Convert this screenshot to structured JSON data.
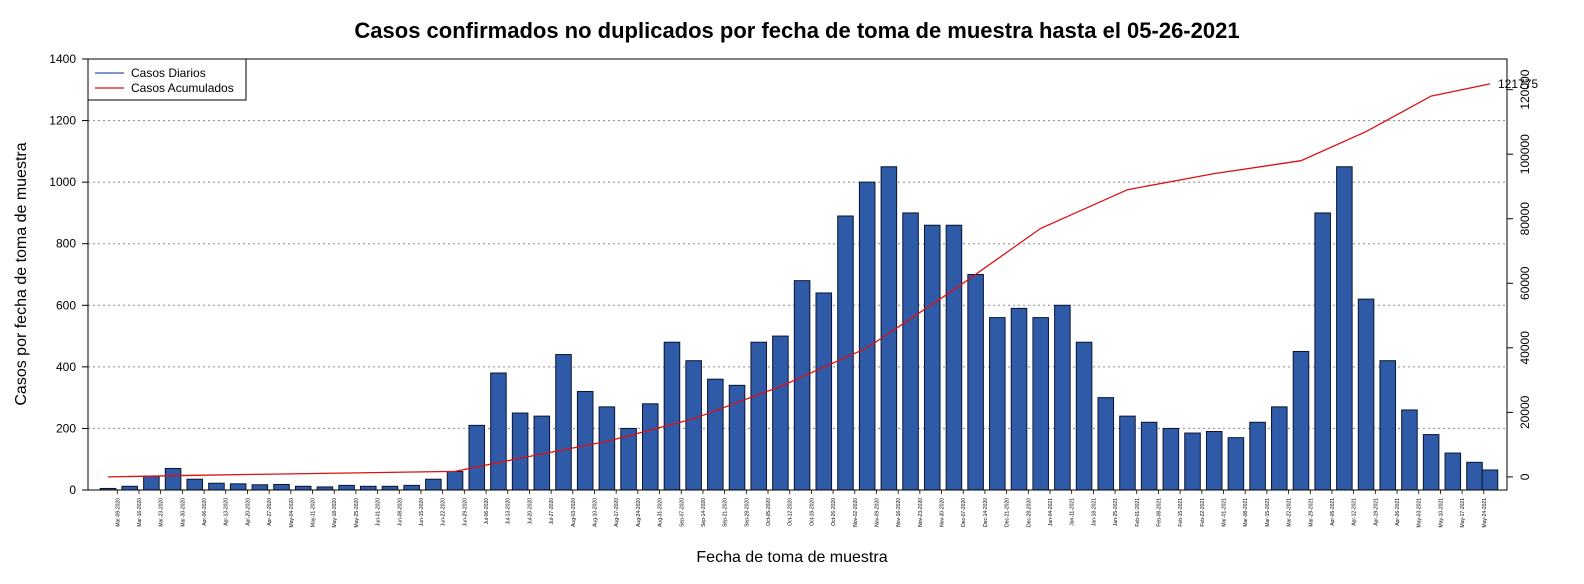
{
  "chart_data": {
    "type": "bar",
    "title": "Casos confirmados no duplicados por fecha de toma de muestra hasta el 05-26-2021",
    "xlabel": "Fecha de toma de muestra",
    "ylabel": "Casos por fecha de toma de muestra",
    "ylim": [
      0,
      1400
    ],
    "y_ticks": [
      0,
      200,
      400,
      600,
      800,
      1000,
      1200,
      1400
    ],
    "y2lim": [
      -4060,
      129500
    ],
    "y2_ticks": [
      0,
      20000,
      40000,
      60000,
      80000,
      100000,
      120000
    ],
    "grid": true,
    "legend_position": "top-left",
    "end_label": "121775",
    "weekly_x_ticks": [
      "Mar-09-2020",
      "Mar-16-2020",
      "Mar-23-2020",
      "Mar-30-2020",
      "Apr-06-2020",
      "Apr-13-2020",
      "Apr-20-2020",
      "Apr-27-2020",
      "May-04-2020",
      "May-11-2020",
      "May-18-2020",
      "May-25-2020",
      "Jun-01-2020",
      "Jun-08-2020",
      "Jun-15-2020",
      "Jun-22-2020",
      "Jun-29-2020",
      "Jul-06-2020",
      "Jul-13-2020",
      "Jul-20-2020",
      "Jul-27-2020",
      "Aug-03-2020",
      "Aug-10-2020",
      "Aug-17-2020",
      "Aug-24-2020",
      "Aug-31-2020",
      "Sep-07-2020",
      "Sep-14-2020",
      "Sep-21-2020",
      "Sep-28-2020",
      "Oct-05-2020",
      "Oct-12-2020",
      "Oct-19-2020",
      "Oct-26-2020",
      "Nov-02-2020",
      "Nov-09-2020",
      "Nov-16-2020",
      "Nov-23-2020",
      "Nov-30-2020",
      "Dec-07-2020",
      "Dec-14-2020",
      "Dec-21-2020",
      "Dec-28-2020",
      "Jan-04-2021",
      "Jan-11-2021",
      "Jan-18-2021",
      "Jan-25-2021",
      "Feb-01-2021",
      "Feb-08-2021",
      "Feb-15-2021",
      "Feb-22-2021",
      "Mar-01-2021",
      "Mar-08-2021",
      "Mar-15-2021",
      "Mar-22-2021",
      "Mar-29-2021",
      "Apr-05-2021",
      "Apr-12-2021",
      "Apr-19-2021",
      "Apr-26-2021",
      "May-03-2021",
      "May-10-2021",
      "May-17-2021",
      "May-24-2021"
    ],
    "series": [
      {
        "name": "Casos Diarios",
        "color": "#2e5aa8",
        "type": "bar",
        "x": [
          "2020-03-06",
          "2020-03-13",
          "2020-03-20",
          "2020-03-27",
          "2020-04-03",
          "2020-04-10",
          "2020-04-17",
          "2020-04-24",
          "2020-05-01",
          "2020-05-08",
          "2020-05-15",
          "2020-05-22",
          "2020-05-29",
          "2020-06-05",
          "2020-06-12",
          "2020-06-19",
          "2020-06-26",
          "2020-07-03",
          "2020-07-10",
          "2020-07-17",
          "2020-07-24",
          "2020-07-31",
          "2020-08-07",
          "2020-08-14",
          "2020-08-21",
          "2020-08-28",
          "2020-09-04",
          "2020-09-11",
          "2020-09-18",
          "2020-09-25",
          "2020-10-02",
          "2020-10-09",
          "2020-10-16",
          "2020-10-23",
          "2020-10-30",
          "2020-11-06",
          "2020-11-13",
          "2020-11-20",
          "2020-11-27",
          "2020-12-04",
          "2020-12-11",
          "2020-12-18",
          "2020-12-25",
          "2021-01-01",
          "2021-01-08",
          "2021-01-15",
          "2021-01-22",
          "2021-01-29",
          "2021-02-05",
          "2021-02-12",
          "2021-02-19",
          "2021-02-26",
          "2021-03-05",
          "2021-03-12",
          "2021-03-19",
          "2021-03-26",
          "2021-04-02",
          "2021-04-09",
          "2021-04-16",
          "2021-04-23",
          "2021-04-30",
          "2021-05-07",
          "2021-05-14",
          "2021-05-21",
          "2021-05-26"
        ],
        "values": [
          5,
          12,
          45,
          70,
          35,
          22,
          20,
          17,
          18,
          12,
          10,
          15,
          12,
          12,
          15,
          35,
          60,
          210,
          380,
          250,
          240,
          440,
          320,
          270,
          200,
          280,
          480,
          420,
          360,
          340,
          480,
          500,
          680,
          640,
          890,
          1000,
          1050,
          900,
          860,
          860,
          700,
          560,
          590,
          560,
          600,
          480,
          300,
          240,
          220,
          200,
          185,
          190,
          170,
          220,
          270,
          450,
          900,
          1050,
          620,
          420,
          260,
          180,
          120,
          90,
          65
        ]
      },
      {
        "name": "Casos Acumulados",
        "color": "#dd1111",
        "type": "line",
        "axis": "right",
        "x": [
          "2020-03-06",
          "2020-04-03",
          "2020-05-01",
          "2020-06-26",
          "2020-07-17",
          "2020-08-14",
          "2020-09-11",
          "2020-10-09",
          "2020-11-06",
          "2020-12-04",
          "2021-01-01",
          "2021-01-29",
          "2021-02-26",
          "2021-03-26",
          "2021-04-16",
          "2021-05-07",
          "2021-05-26"
        ],
        "values": [
          0,
          500,
          900,
          1700,
          5800,
          11000,
          18000,
          28000,
          40000,
          58000,
          77000,
          89000,
          94000,
          98000,
          107000,
          118000,
          121775
        ]
      }
    ]
  }
}
